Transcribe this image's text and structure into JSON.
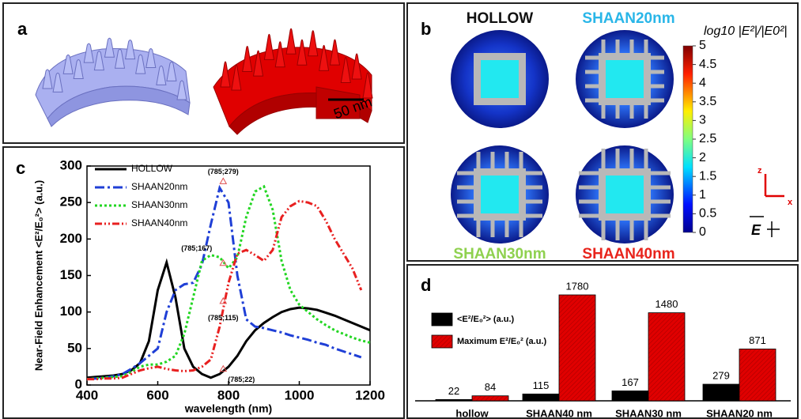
{
  "panel_a": {
    "label": "a",
    "scale_bar": "50 nm"
  },
  "panel_b": {
    "label": "b",
    "titles": [
      "HOLLOW",
      "SHAAN20nm",
      "SHAAN30nm",
      "SHAAN40nm"
    ],
    "title_colors": [
      "#111111",
      "#29b6e8",
      "#8fd14f",
      "#e8241c"
    ],
    "colorbar": {
      "label": "log10 |E²|/|E0²|",
      "lim": [
        0,
        5
      ],
      "ticks": [
        5,
        4.5,
        4,
        3.5,
        3,
        2.5,
        2,
        1.5,
        1,
        0.5,
        0
      ]
    },
    "axes": [
      "z",
      "x"
    ],
    "field": "E"
  },
  "chart_data": [
    {
      "type": "line",
      "label": "c",
      "xlabel": "wavelength (nm)",
      "ylabel": "Near-Field Enhancement <E²/E₀²> (a.u.)",
      "x": [
        400,
        425,
        450,
        475,
        500,
        525,
        550,
        575,
        600,
        625,
        650,
        675,
        700,
        725,
        750,
        775,
        800,
        825,
        850,
        875,
        900,
        925,
        950,
        975,
        1000,
        1025,
        1050,
        1075,
        1100,
        1125,
        1150,
        1175,
        1200
      ],
      "xlim": [
        400,
        1200
      ],
      "xticks": [
        400,
        600,
        800,
        1000,
        1200
      ],
      "ylim": [
        0,
        300
      ],
      "yticks": [
        0,
        50,
        100,
        150,
        200,
        250,
        300
      ],
      "series": [
        {
          "name": "HOLLOW",
          "color": "#000000",
          "style": "solid",
          "values": [
            10,
            11,
            12,
            13,
            15,
            20,
            30,
            60,
            130,
            168,
            120,
            50,
            25,
            15,
            10,
            15,
            25,
            40,
            60,
            75,
            85,
            93,
            100,
            104,
            106,
            105,
            103,
            99,
            95,
            90,
            85,
            80,
            75
          ]
        },
        {
          "name": "SHAAN20nm",
          "color": "#1f3fd6",
          "style": "dashdot",
          "values": [
            8,
            9,
            10,
            12,
            15,
            22,
            30,
            40,
            50,
            100,
            130,
            138,
            140,
            165,
            220,
            270,
            250,
            150,
            90,
            80,
            78,
            75,
            72,
            68,
            65,
            62,
            58,
            55,
            50,
            46,
            42,
            38,
            null
          ]
        },
        {
          "name": "SHAAN30nm",
          "color": "#22d622",
          "style": "dotted",
          "values": [
            8,
            9,
            10,
            11,
            12,
            18,
            25,
            28,
            28,
            32,
            40,
            70,
            120,
            170,
            178,
            175,
            160,
            175,
            230,
            265,
            272,
            240,
            170,
            130,
            110,
            100,
            90,
            82,
            75,
            70,
            65,
            61,
            58
          ]
        },
        {
          "name": "SHAAN40nm",
          "color": "#e82020",
          "style": "dashdotdot",
          "values": [
            8,
            8,
            9,
            9,
            10,
            15,
            20,
            23,
            25,
            22,
            20,
            19,
            20,
            25,
            35,
            80,
            140,
            180,
            185,
            178,
            170,
            185,
            230,
            245,
            252,
            250,
            245,
            225,
            200,
            180,
            160,
            130,
            null
          ]
        }
      ],
      "annotations": [
        {
          "x": 785,
          "y": 279,
          "label": "(785;279)",
          "position": "above"
        },
        {
          "x": 785,
          "y": 167,
          "label": "(785;167)",
          "position": "left"
        },
        {
          "x": 785,
          "y": 115,
          "label": "(785;115)",
          "position": "below"
        },
        {
          "x": 785,
          "y": 22,
          "label": "(785;22)",
          "position": "right"
        }
      ]
    },
    {
      "type": "bar",
      "label": "d",
      "categories": [
        "hollow",
        "SHAAN40 nm",
        "SHAAN30 nm",
        "SHAAN20 nm"
      ],
      "series": [
        {
          "name": "<E²/E₀²> (a.u.)",
          "color": "#000000",
          "values": [
            22,
            115,
            167,
            279
          ]
        },
        {
          "name": "Maximum E²/E₀² (a.u.)",
          "color": "#e00000",
          "values": [
            84,
            1780,
            1480,
            871
          ]
        }
      ]
    }
  ]
}
